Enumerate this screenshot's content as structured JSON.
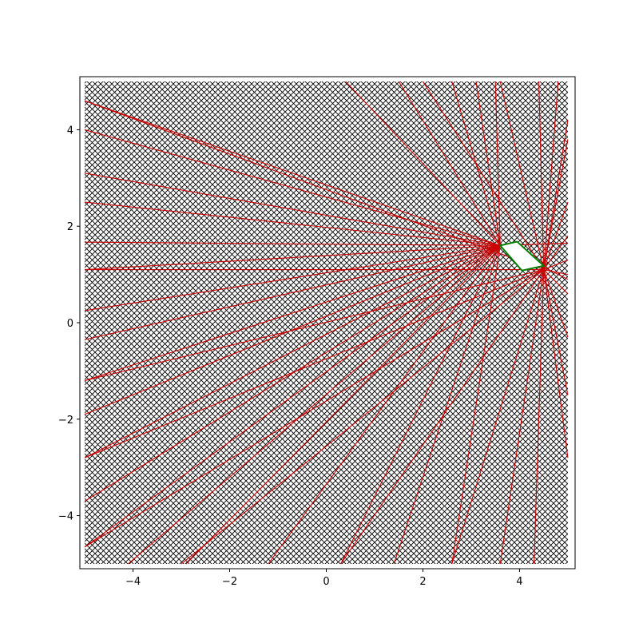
{
  "chart_data": {
    "type": "line",
    "title": "",
    "xlabel": "",
    "ylabel": "",
    "xlim": [
      -5.1,
      5.15
    ],
    "ylim": [
      -5.1,
      5.1
    ],
    "grid": false,
    "xticks": [
      -4,
      -2,
      0,
      2,
      4
    ],
    "yticks": [
      -4,
      -2,
      0,
      2,
      4
    ],
    "xtick_labels": [
      "−4",
      "−2",
      "0",
      "2",
      "4"
    ],
    "ytick_labels": [
      "−4",
      "−2",
      "0",
      "2",
      "4"
    ],
    "background_hatch": {
      "description": "cross-hatched square mesh",
      "x_range": [
        -5,
        5
      ],
      "y_range": [
        -5,
        5
      ],
      "color": "#000000"
    },
    "obstacle": {
      "name": "quadrilateral",
      "vertices": [
        [
          3.6,
          1.6
        ],
        [
          3.95,
          1.68
        ],
        [
          4.5,
          1.18
        ],
        [
          4.05,
          1.08
        ]
      ],
      "fill": "#ffffff",
      "edge_color": "#008000"
    },
    "ray_colors": {
      "rays": "#cc0000"
    },
    "ray_sources": [
      {
        "name": "upper-left-vertex",
        "origin": [
          3.6,
          1.6
        ],
        "endpoints": [
          [
            -5,
            4.6
          ],
          [
            -5,
            4.0
          ],
          [
            -5,
            3.1
          ],
          [
            -5,
            2.5
          ],
          [
            -5,
            1.67
          ],
          [
            -5,
            1.1
          ],
          [
            -5,
            0.25
          ],
          [
            -5,
            -0.35
          ],
          [
            -5,
            -1.2
          ],
          [
            -5,
            -1.9
          ],
          [
            -5,
            -2.8
          ],
          [
            -5,
            -3.7
          ],
          [
            -5,
            -4.65
          ],
          [
            -4.1,
            -5
          ],
          [
            -2.9,
            -5
          ],
          [
            -1.2,
            -5
          ],
          [
            0.3,
            -5
          ],
          [
            1.4,
            -5
          ],
          [
            2.6,
            -5
          ],
          [
            0.4,
            5
          ],
          [
            1.5,
            5
          ],
          [
            2.6,
            5
          ],
          [
            3.1,
            5
          ],
          [
            3.5,
            5
          ],
          [
            5,
            1.65
          ],
          [
            5,
            0.9
          ]
        ]
      },
      {
        "name": "lower-right-vertex",
        "origin": [
          4.5,
          1.1
        ],
        "endpoints": [
          [
            -5,
            4.6
          ],
          [
            -5,
            1.1
          ],
          [
            -5,
            -1.2
          ],
          [
            -5,
            -2.8
          ],
          [
            -5,
            -4.65
          ],
          [
            -3.0,
            -5
          ],
          [
            0.3,
            -5
          ],
          [
            2.6,
            -5
          ],
          [
            3.6,
            -5
          ],
          [
            4.3,
            -5
          ],
          [
            2.0,
            5
          ],
          [
            3.6,
            5
          ],
          [
            4.4,
            5
          ],
          [
            4.8,
            5
          ],
          [
            5,
            4.2
          ],
          [
            5,
            3.8
          ],
          [
            5,
            2.5
          ],
          [
            5,
            1.8
          ],
          [
            5,
            1.3
          ],
          [
            5,
            1.0
          ],
          [
            5,
            0.6
          ],
          [
            5,
            -0.3
          ],
          [
            5,
            -1.5
          ],
          [
            5,
            -2.8
          ]
        ]
      }
    ]
  }
}
